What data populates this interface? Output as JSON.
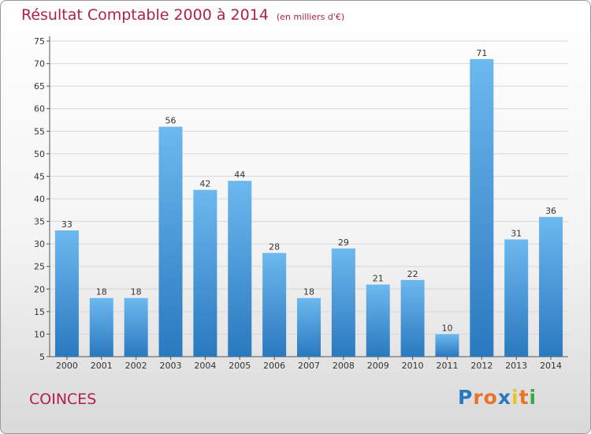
{
  "header": {
    "title": "Résultat Comptable 2000 à 2014",
    "subtitle": "(en milliers d'€)"
  },
  "footer": {
    "commune": "COINCES",
    "logo_text": "Proxiti"
  },
  "colors": {
    "title": "#b0204a",
    "bar_top": "#6cb8ef",
    "bar_bottom": "#2a79bf",
    "grid": "#d7d7d7"
  },
  "chart_data": {
    "type": "bar",
    "categories": [
      "2000",
      "2001",
      "2002",
      "2003",
      "2004",
      "2005",
      "2006",
      "2007",
      "2008",
      "2009",
      "2010",
      "2011",
      "2012",
      "2013",
      "2014"
    ],
    "values": [
      33,
      18,
      18,
      56,
      42,
      44,
      28,
      18,
      29,
      21,
      22,
      10,
      71,
      31,
      36
    ],
    "title": "Résultat Comptable 2000 à 2014",
    "xlabel": "",
    "ylabel": "",
    "ylim": [
      5,
      75
    ],
    "yticks": [
      5,
      10,
      15,
      20,
      25,
      30,
      35,
      40,
      45,
      50,
      55,
      60,
      65,
      70,
      75
    ],
    "grid": true
  }
}
